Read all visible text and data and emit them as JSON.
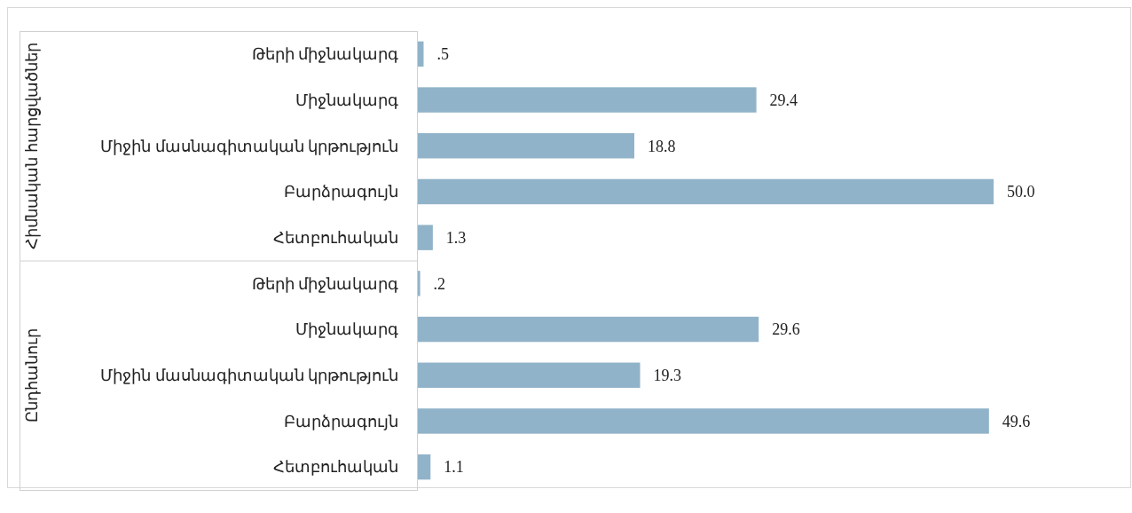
{
  "chart_data": {
    "type": "bar",
    "orientation": "horizontal",
    "categories": [
      "Թերի միջնակարգ",
      "Միջնակարգ",
      "Միջին մասնագիտական կրթություն",
      "Բարձրագույն",
      "Հետբուհական",
      "Թերի միջնակարգ",
      "Միջնակարգ",
      "Միջին մասնագիտական կրթություն",
      "Բարձրագույն",
      "Հետբուհական"
    ],
    "values": [
      0.5,
      29.4,
      18.8,
      50.0,
      1.3,
      0.2,
      29.6,
      19.3,
      49.6,
      1.1
    ],
    "value_labels": [
      ".5",
      "29.4",
      "18.8",
      "50.0",
      "1.3",
      ".2",
      "29.6",
      "19.3",
      "49.6",
      "1.1"
    ],
    "color": "#91b3c9",
    "annotations": [
      "Հիմնական հարցվածներ",
      "Ընդհանուր"
    ]
  }
}
